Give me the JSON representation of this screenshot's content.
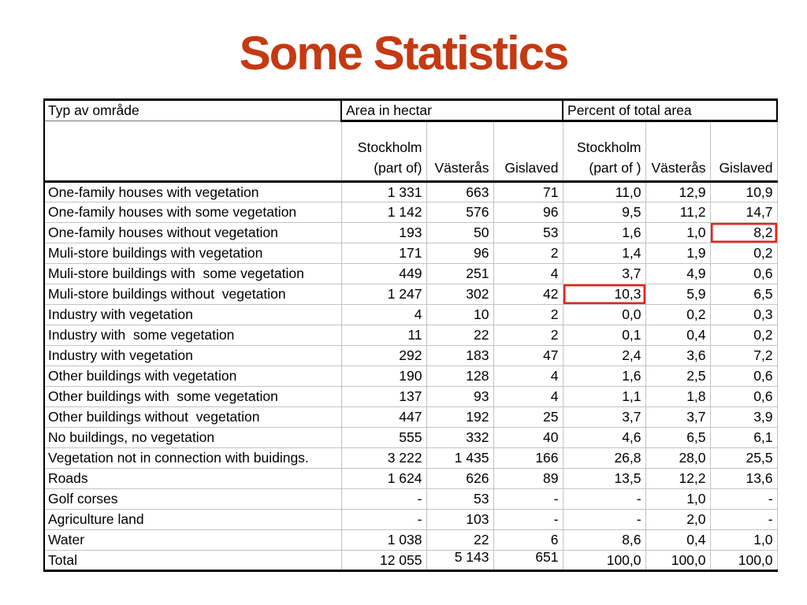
{
  "slide": {
    "title": "Some Statistics",
    "title_color": "#C43A12",
    "highlight_color": "#E8231D",
    "background_color": "#FFFFFF"
  },
  "table": {
    "corner_header": "Typ av område",
    "group_headers": [
      "Area in hectar",
      "Percent of total area"
    ],
    "column_headers": [
      "Stockholm\n(part of)",
      "Västerås",
      "Gislaved",
      "Stockholm\n(part of )",
      "Västerås",
      "Gislaved"
    ],
    "rows": [
      {
        "label": "One-family houses with vegetation",
        "values": [
          "1 331",
          "663",
          "71",
          "11,0",
          "12,9",
          "10,9"
        ]
      },
      {
        "label": "One-family houses with some vegetation",
        "values": [
          "1 142",
          "576",
          "96",
          "9,5",
          "11,2",
          "14,7"
        ]
      },
      {
        "label": "One-family houses without vegetation",
        "values": [
          "193",
          "50",
          "53",
          "1,6",
          "1,0",
          "8,2"
        ],
        "highlight_col": 5
      },
      {
        "label": "Muli-store buildings with vegetation",
        "values": [
          "171",
          "96",
          "2",
          "1,4",
          "1,9",
          "0,2"
        ]
      },
      {
        "label": "Muli-store buildings with  some vegetation",
        "values": [
          "449",
          "251",
          "4",
          "3,7",
          "4,9",
          "0,6"
        ]
      },
      {
        "label": "Muli-store buildings without  vegetation",
        "values": [
          "1 247",
          "302",
          "42",
          "10,3",
          "5,9",
          "6,5"
        ],
        "highlight_col": 3
      },
      {
        "label": "Industry with vegetation",
        "values": [
          "4",
          "10",
          "2",
          "0,0",
          "0,2",
          "0,3"
        ]
      },
      {
        "label": "Industry with  some vegetation",
        "values": [
          "11",
          "22",
          "2",
          "0,1",
          "0,4",
          "0,2"
        ]
      },
      {
        "label": "Industry with vegetation",
        "values": [
          "292",
          "183",
          "47",
          "2,4",
          "3,6",
          "7,2"
        ]
      },
      {
        "label": "Other buildings with vegetation",
        "values": [
          "190",
          "128",
          "4",
          "1,6",
          "2,5",
          "0,6"
        ]
      },
      {
        "label": "Other buildings with  some vegetation",
        "values": [
          "137",
          "93",
          "4",
          "1,1",
          "1,8",
          "0,6"
        ]
      },
      {
        "label": "Other buildings without  vegetation",
        "values": [
          "447",
          "192",
          "25",
          "3,7",
          "3,7",
          "3,9"
        ]
      },
      {
        "label": "No buildings, no vegetation",
        "values": [
          "555",
          "332",
          "40",
          "4,6",
          "6,5",
          "6,1"
        ]
      },
      {
        "label": "Vegetation not in connection with buidings.",
        "values": [
          "3 222",
          "1 435",
          "166",
          "26,8",
          "28,0",
          "25,5"
        ]
      },
      {
        "label": "Roads",
        "values": [
          "1 624",
          "626",
          "89",
          "13,5",
          "12,2",
          "13,6"
        ]
      },
      {
        "label": "Golf corses",
        "values": [
          "-",
          "53",
          "-",
          "-",
          "1,0",
          "-"
        ]
      },
      {
        "label": "Agriculture land",
        "values": [
          "-",
          "103",
          "-",
          "-",
          "2,0",
          "-"
        ]
      },
      {
        "label": "Water",
        "values": [
          "1 038",
          "22",
          "6",
          "8,6",
          "0,4",
          "1,0"
        ]
      },
      {
        "label": "Total",
        "values": [
          "12 055",
          "5 143",
          "651",
          "100,0",
          "100,0",
          "100,0"
        ],
        "is_total": true
      }
    ]
  }
}
